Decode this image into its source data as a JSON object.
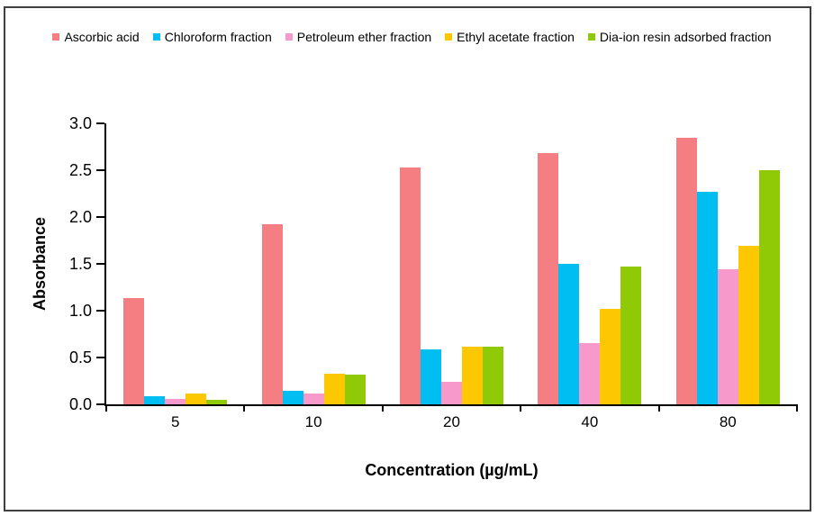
{
  "figure": {
    "background": "#FFFFFF",
    "frame_border_color": "#3F3F3F",
    "axis_color": "#000000",
    "text_color": "#000000"
  },
  "chart_data": {
    "type": "bar",
    "title": "",
    "xlabel": "Concentration (µg/mL)",
    "ylabel": "Absorbance",
    "categories": [
      "5",
      "10",
      "20",
      "40",
      "80"
    ],
    "series": [
      {
        "name": "Ascorbic acid",
        "color": "#F57E82",
        "values": [
          1.13,
          1.92,
          2.53,
          2.68,
          2.85
        ]
      },
      {
        "name": "Chloroform fraction",
        "color": "#00BEF2",
        "values": [
          0.09,
          0.14,
          0.59,
          1.5,
          2.27
        ]
      },
      {
        "name": "Petroleum ether fraction",
        "color": "#F899CC",
        "values": [
          0.06,
          0.12,
          0.24,
          0.65,
          1.44
        ]
      },
      {
        "name": "Ethyl acetate fraction",
        "color": "#FDC702",
        "values": [
          0.12,
          0.33,
          0.62,
          1.02,
          1.69
        ]
      },
      {
        "name": "Dia-ion resin adsorbed fraction",
        "color": "#90C906",
        "values": [
          0.05,
          0.32,
          0.62,
          1.47,
          2.5
        ]
      }
    ],
    "ylim": [
      0,
      3.0
    ],
    "yticks": [
      "0.0",
      "0.5",
      "1.0",
      "1.5",
      "2.0",
      "2.5",
      "3.0"
    ],
    "grid": false,
    "legend_position": "top"
  }
}
